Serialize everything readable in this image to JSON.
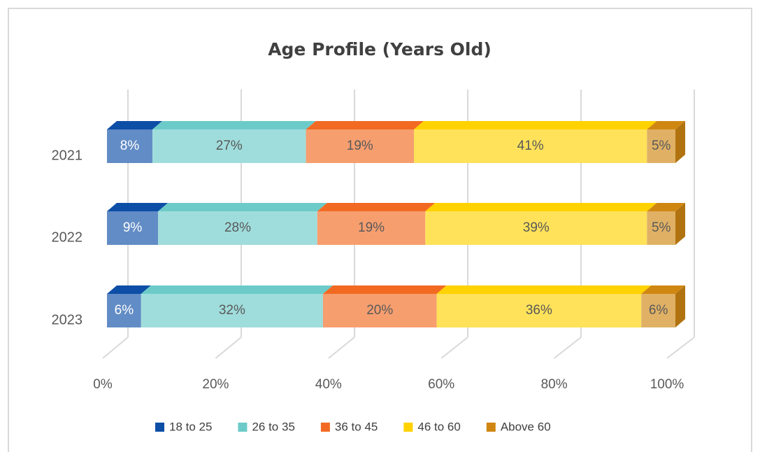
{
  "chart_data": {
    "type": "bar",
    "stacked": true,
    "orientation": "horizontal",
    "title": "Age Profile (Years Old)",
    "categories": [
      "2021",
      "2022",
      "2023"
    ],
    "series": [
      {
        "name": "18 to 25",
        "color": "#0d4ea6",
        "values": [
          8,
          9,
          6
        ],
        "value_labels": [
          "8%",
          "9%",
          "6%"
        ]
      },
      {
        "name": "26 to 35",
        "color": "#6ccbc9",
        "values": [
          27,
          28,
          32
        ],
        "value_labels": [
          "27%",
          "28%",
          "32%"
        ]
      },
      {
        "name": "36 to 45",
        "color": "#f26a22",
        "values": [
          19,
          19,
          20
        ],
        "value_labels": [
          "19%",
          "19%",
          "20%"
        ]
      },
      {
        "name": "46 to 60",
        "color": "#ffd200",
        "values": [
          41,
          39,
          36
        ],
        "value_labels": [
          "41%",
          "39%",
          "36%"
        ]
      },
      {
        "name": "Above 60",
        "color": "#d08712",
        "values": [
          5,
          5,
          6
        ],
        "value_labels": [
          "5%",
          "5%",
          "6%"
        ]
      }
    ],
    "xlim": [
      0,
      100
    ],
    "xticks": [
      {
        "value": 0,
        "label": "0%"
      },
      {
        "value": 20,
        "label": "20%"
      },
      {
        "value": 40,
        "label": "40%"
      },
      {
        "value": 60,
        "label": "60%"
      },
      {
        "value": 80,
        "label": "80%"
      },
      {
        "value": 100,
        "label": "100%"
      }
    ],
    "grid": true,
    "legend": "bottom"
  }
}
